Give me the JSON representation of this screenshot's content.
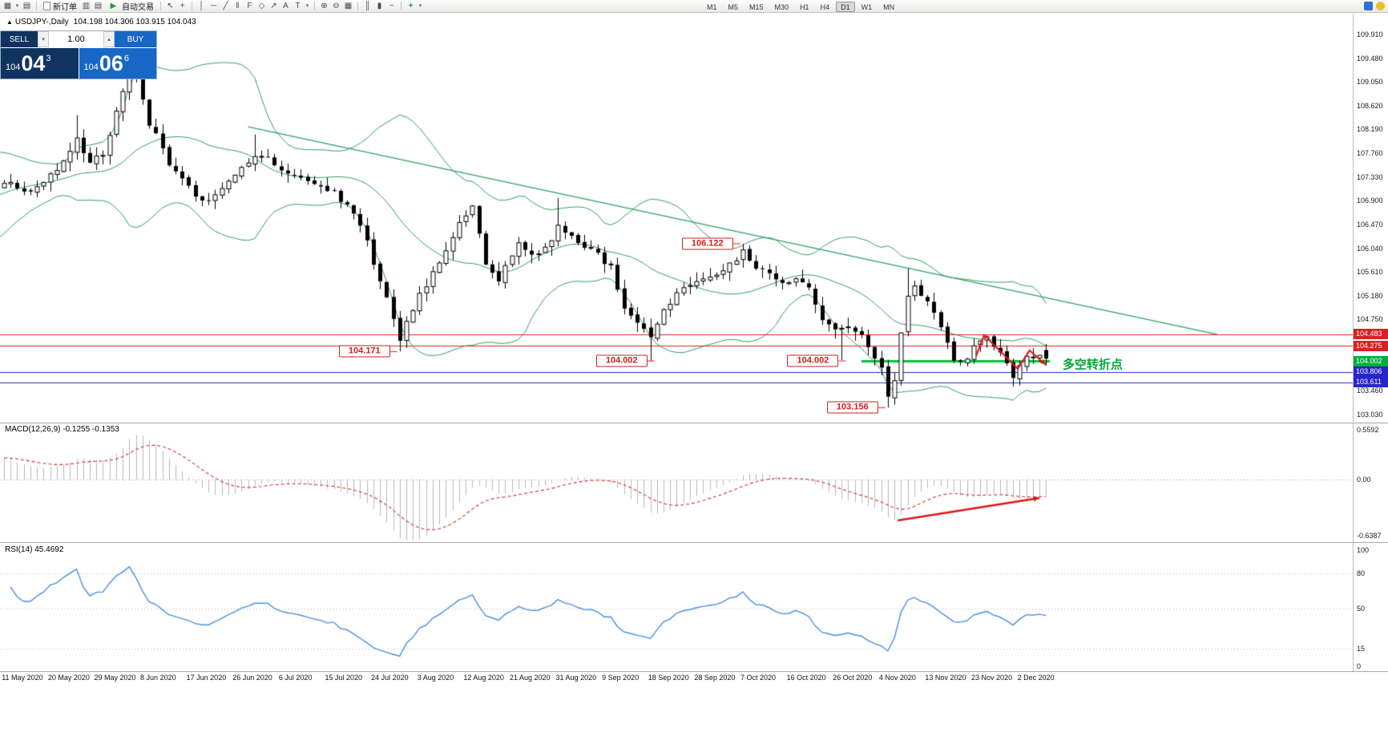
{
  "toolbar": {
    "new_order_label": "新订单",
    "auto_trading_label": "自动交易",
    "timeframes": [
      "M1",
      "M5",
      "M15",
      "M30",
      "H1",
      "H4",
      "D1",
      "W1",
      "MN"
    ],
    "active_timeframe": "D1",
    "icons": {
      "new_chart": "▦",
      "dropdown": "▾",
      "profiles": "▤",
      "market_watch": "▥",
      "data_window": "▤",
      "auto_play": "▶",
      "cursor": "↖",
      "crosshair": "+",
      "vline": "│",
      "hline": "─",
      "trendline": "╱",
      "channel": "‖",
      "fibonacci": "F",
      "shapes": "◇",
      "arrows": "↗",
      "text": "A",
      "label": "T",
      "zoom_in": "⊕",
      "zoom_out": "⊖",
      "tile": "▦",
      "bars": "║",
      "candles": "▮",
      "linechart": "~",
      "indicators": "+"
    }
  },
  "chart_header": {
    "marker": "▲",
    "title": "USDJPY-,Daily",
    "ohlc": "104.198 104.306 103.915 104.043"
  },
  "trade_panel": {
    "sell_label": "SELL",
    "buy_label": "BUY",
    "volume": "1.00",
    "spin_up": "▴",
    "spin_down": "▾",
    "sell_price": {
      "prefix": "104",
      "big": "04",
      "sup": "3"
    },
    "buy_price": {
      "prefix": "104",
      "big": "06",
      "sup": "6"
    }
  },
  "panes": {
    "macd": {
      "label": "MACD(12,26,9) -0.1255 -0.1353",
      "axis": [
        {
          "text": "0.5592",
          "value": 0.5592
        },
        {
          "text": "0.00",
          "value": 0
        },
        {
          "text": "-0.6387",
          "value": -0.6387
        }
      ]
    },
    "rsi": {
      "label": "RSI(14) 45.4692",
      "axis": [
        {
          "text": "100",
          "value": 100
        },
        {
          "text": "80",
          "value": 80
        },
        {
          "text": "50",
          "value": 50
        },
        {
          "text": "15",
          "value": 15
        },
        {
          "text": "0",
          "value": 0
        }
      ],
      "levels": [
        80,
        50,
        15
      ]
    }
  },
  "chart_data": {
    "type": "candlestick",
    "symbol": "USDJPY-",
    "timeframe": "Daily",
    "last_ohlc": {
      "open": 104.198,
      "high": 104.306,
      "low": 103.915,
      "close": 104.043
    },
    "price_axis_ticks": [
      "109.910",
      "109.480",
      "109.050",
      "108.620",
      "108.190",
      "107.760",
      "107.330",
      "106.900",
      "106.470",
      "106.040",
      "105.610",
      "105.180",
      "104.750",
      "103.460",
      "103.030"
    ],
    "price_tags": [
      {
        "text": "104.483",
        "price": 104.483,
        "bg": "#d62222"
      },
      {
        "text": "104.275",
        "price": 104.275,
        "bg": "#d62222"
      },
      {
        "text": "104.002",
        "price": 104.002,
        "bg": "#00ae3c"
      },
      {
        "text": "103.806",
        "price": 103.806,
        "bg": "#2626cc"
      },
      {
        "text": "103.611",
        "price": 103.611,
        "bg": "#2626cc"
      }
    ],
    "date_labels": [
      "11 May 2020",
      "20 May 2020",
      "29 May 2020",
      "8 Jun 2020",
      "17 Jun 2020",
      "26 Jun 2020",
      "6 Jul 2020",
      "15 Jul 2020",
      "24 Jul 2020",
      "3 Aug 2020",
      "12 Aug 2020",
      "21 Aug 2020",
      "31 Aug 2020",
      "9 Sep 2020",
      "18 Sep 2020",
      "28 Sep 2020",
      "7 Oct 2020",
      "16 Oct 2020",
      "26 Oct 2020",
      "4 Nov 2020",
      "13 Nov 2020",
      "23 Nov 2020",
      "2 Dec 2020"
    ],
    "num_candles": 159,
    "close_anchors": [
      [
        -20,
        106.3
      ],
      [
        -12,
        106.9
      ],
      [
        -6,
        107.5
      ],
      [
        0,
        107.25
      ],
      [
        4,
        107.05
      ],
      [
        8,
        107.5
      ],
      [
        11,
        108.0
      ],
      [
        13,
        107.55
      ],
      [
        15,
        107.75
      ],
      [
        18,
        108.9
      ],
      [
        19,
        109.5
      ],
      [
        20,
        109.15
      ],
      [
        22,
        108.3
      ],
      [
        25,
        107.6
      ],
      [
        27,
        107.3
      ],
      [
        30,
        106.85
      ],
      [
        33,
        107.1
      ],
      [
        36,
        107.5
      ],
      [
        39,
        107.75
      ],
      [
        42,
        107.45
      ],
      [
        46,
        107.25
      ],
      [
        50,
        107.05
      ],
      [
        54,
        106.5
      ],
      [
        57,
        105.4
      ],
      [
        59,
        104.8
      ],
      [
        60,
        104.4
      ],
      [
        62,
        104.95
      ],
      [
        65,
        105.6
      ],
      [
        69,
        106.5
      ],
      [
        71,
        106.8
      ],
      [
        73,
        105.7
      ],
      [
        75,
        105.5
      ],
      [
        78,
        106.1
      ],
      [
        81,
        105.9
      ],
      [
        84,
        106.4
      ],
      [
        87,
        106.15
      ],
      [
        89,
        106.05
      ],
      [
        92,
        105.7
      ],
      [
        94,
        105.0
      ],
      [
        97,
        104.6
      ],
      [
        98,
        104.45
      ],
      [
        100,
        104.95
      ],
      [
        103,
        105.35
      ],
      [
        106,
        105.45
      ],
      [
        109,
        105.6
      ],
      [
        112,
        106.0
      ],
      [
        114,
        105.7
      ],
      [
        118,
        105.45
      ],
      [
        120,
        105.5
      ],
      [
        122,
        105.3
      ],
      [
        124,
        104.8
      ],
      [
        126,
        104.55
      ],
      [
        128,
        104.65
      ],
      [
        130,
        104.45
      ],
      [
        132,
        104.1
      ],
      [
        133,
        103.85
      ],
      [
        134,
        103.35
      ],
      [
        135,
        103.7
      ],
      [
        137,
        105.2
      ],
      [
        138,
        105.4
      ],
      [
        141,
        104.9
      ],
      [
        143,
        104.3
      ],
      [
        144,
        103.95
      ],
      [
        146,
        104.05
      ],
      [
        147,
        104.25
      ],
      [
        149,
        104.45
      ],
      [
        151,
        104.1
      ],
      [
        153,
        103.75
      ],
      [
        155,
        104.1
      ],
      [
        157,
        104.15
      ],
      [
        158,
        104.043
      ]
    ],
    "pinned_points": [
      {
        "i": 11,
        "high": 108.45
      },
      {
        "i": 19,
        "high": 109.85
      },
      {
        "i": 38,
        "high": 108.1
      },
      {
        "i": 60,
        "low": 104.171
      },
      {
        "i": 84,
        "high": 106.95
      },
      {
        "i": 98,
        "low": 104.002
      },
      {
        "i": 112,
        "high": 106.122
      },
      {
        "i": 127,
        "low": 104.02
      },
      {
        "i": 134,
        "low": 103.156
      },
      {
        "i": 137,
        "high": 105.68
      }
    ],
    "levels": [
      {
        "price": 104.483,
        "color": "red_line",
        "width": 1
      },
      {
        "price": 104.275,
        "color": "red_line",
        "width": 1
      },
      {
        "price": 104.002,
        "color": "thick_line",
        "width": 3,
        "from_i": 130,
        "to_i": 158.6
      },
      {
        "price": 103.806,
        "color": "blue_line",
        "width": 1
      },
      {
        "price": 103.611,
        "color": "blue_line",
        "width": 1
      }
    ],
    "trendline": {
      "from": {
        "i": 37,
        "price": 108.24
      },
      "to": {
        "i": 184,
        "price": 104.48
      }
    },
    "bollinger": {
      "period": 20,
      "deviation": 2
    },
    "macd": {
      "fast": 12,
      "slow": 26,
      "signal": 9,
      "scale_top": 0.5592,
      "scale_bottom": -0.6387,
      "values": [
        -0.1255,
        -0.1353
      ]
    },
    "rsi": {
      "period": 14,
      "value": 45.4692
    },
    "flags": [
      {
        "text": "106.122",
        "i": 112,
        "price": 106.122
      },
      {
        "text": "104.171",
        "i": 60,
        "price": 104.171
      },
      {
        "text": "104.002",
        "i": 99,
        "price": 104.002
      },
      {
        "text": "104.002",
        "i": 128,
        "price": 104.002
      },
      {
        "text": "103.156",
        "i": 134,
        "price": 103.156
      }
    ],
    "red_zigzag": [
      [
        147.4,
        104.09
      ],
      [
        148.6,
        104.47
      ],
      [
        153.7,
        103.86
      ],
      [
        155.5,
        104.19
      ],
      [
        158,
        103.93
      ]
    ],
    "macd_arrow": {
      "from": [
        135.5,
        -0.466
      ],
      "to": [
        157,
        -0.212
      ]
    },
    "turning_point": {
      "text": "多空转折点",
      "i": 160.5,
      "price": 103.95,
      "color": "#00a838"
    },
    "colors": {
      "band": "#2f9e63",
      "thick_line": "#00c43c",
      "red_line": "#e02020",
      "blue_line": "#2828d0",
      "hist": "#b8b8b8",
      "signal": "#d03030",
      "rsi_line": "#4a8ede",
      "arrow": "#e01515",
      "flag": "#cf2020"
    }
  }
}
